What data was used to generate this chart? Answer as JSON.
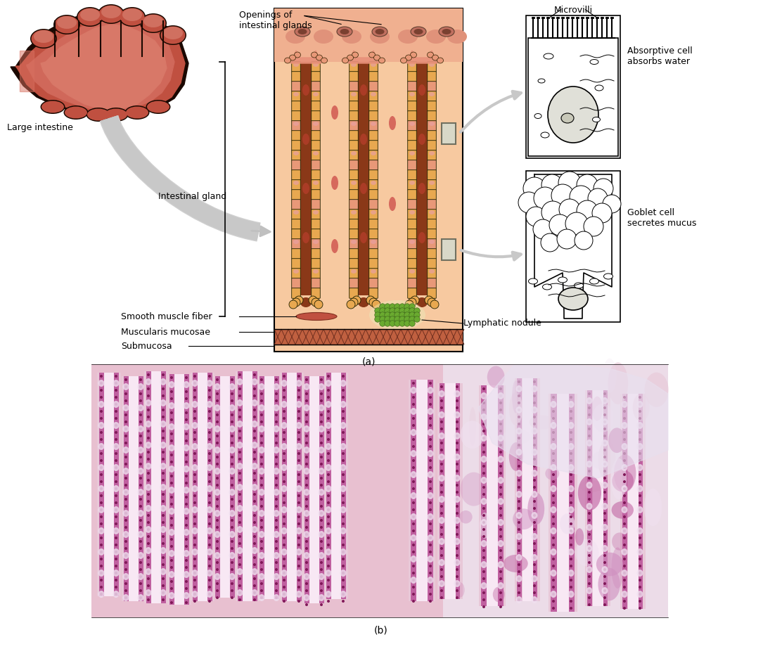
{
  "bg_color": "#ffffff",
  "panel_bg": "#f7c9a0",
  "panel_top_bg": "#f0b090",
  "gland_cell_color": "#e8a050",
  "gland_goblet_color": "#e8a090",
  "gland_lumen_color": "#8b4020",
  "lymph_color": "#70b040",
  "muscle_color": "#c05040",
  "mm_color": "#b04030",
  "submucosa_color": "#f5c9a0",
  "arrow_color": "#c8c8c8",
  "label_fontsize": 9,
  "caption_fontsize": 10,
  "microvilli_label": "Microvilli",
  "absorptive_label": "Absorptive cell\nabsorbs water",
  "goblet_label": "Goblet cell\nsecretes mucus",
  "intestinal_gland_label": "Intestinal gland",
  "openings_label": "Openings of\nintestinal glands",
  "smooth_muscle_label": "Smooth muscle fiber",
  "muscularis_label": "Muscularis mucosae",
  "submucosa_label": "Submucosa",
  "lymphatic_label": "Lymphatic nodule",
  "large_intestine_label": "Large intestine",
  "caption_a": "(a)",
  "caption_b": "(b)"
}
